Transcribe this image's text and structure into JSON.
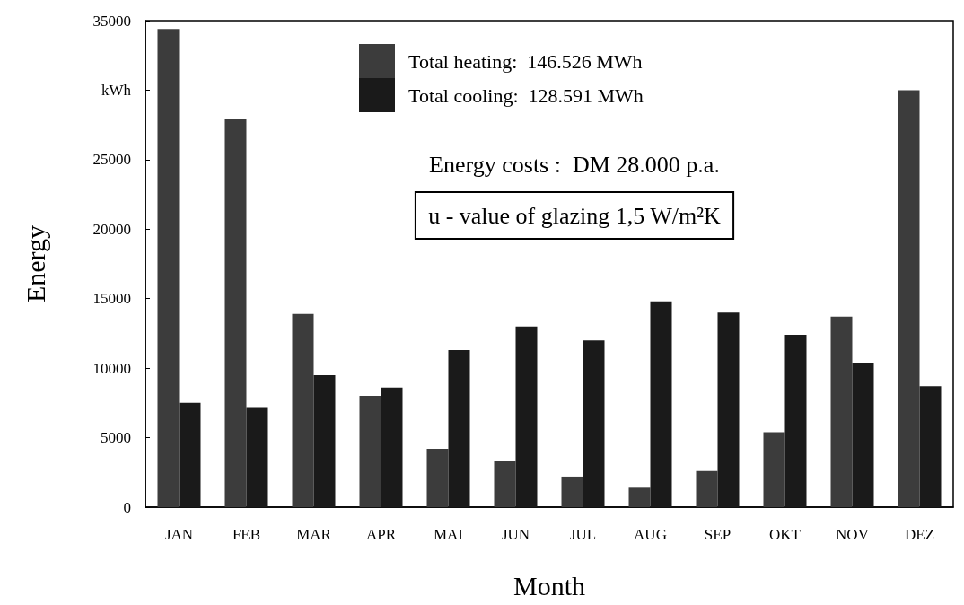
{
  "chart_data": {
    "type": "bar",
    "xlabel": "Month",
    "ylabel": "Energy",
    "categories": [
      "JAN",
      "FEB",
      "MAR",
      "APR",
      "MAI",
      "JUN",
      "JUL",
      "AUG",
      "SEP",
      "OKT",
      "NOV",
      "DEZ"
    ],
    "series": [
      {
        "name": "Total heating:  146.526 MWh",
        "color": "#3c3c3c",
        "values": [
          34400,
          27900,
          13900,
          8000,
          4200,
          3300,
          2200,
          1400,
          2600,
          5400,
          13700,
          30000
        ]
      },
      {
        "name": "Total cooling:  128.591 MWh",
        "color": "#1a1a1a",
        "values": [
          7500,
          7200,
          9500,
          8600,
          11300,
          13000,
          12000,
          14800,
          14000,
          12400,
          10400,
          8700
        ]
      }
    ],
    "ylim": [
      0,
      35000
    ],
    "yticks": [
      0,
      5000,
      10000,
      15000,
      20000,
      25000,
      {
        "value": 30000,
        "label": "kWh"
      },
      35000
    ],
    "grid": false,
    "legend": "top",
    "annotations": [
      "Energy costs :  DM 28.000 p.a.",
      "u - value of glazing 1,5 W/m²K"
    ]
  }
}
